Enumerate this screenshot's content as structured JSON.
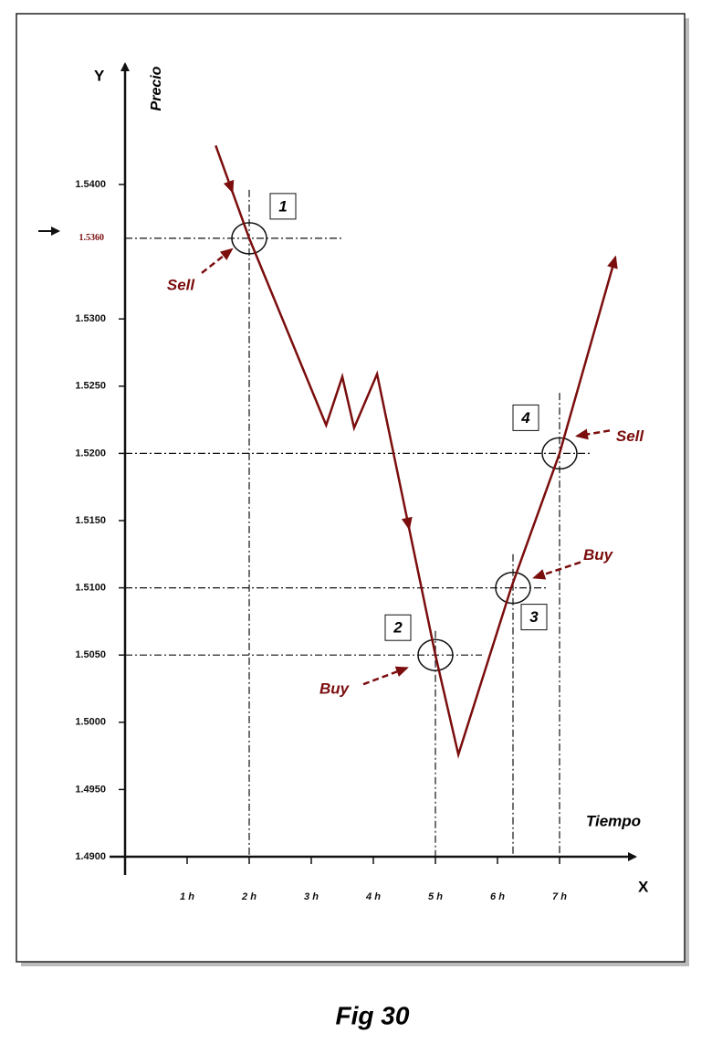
{
  "chart_data": {
    "type": "line",
    "title": "Fig 30",
    "y_label": "Precio",
    "x_label": "Tiempo",
    "y_axis_name": "Y",
    "x_axis_name": "X",
    "x": [
      1.46,
      2,
      3.24,
      3.5,
      3.69,
      4.06,
      5,
      5.37,
      6.22,
      7,
      7.9
    ],
    "values": [
      1.5429,
      1.536,
      1.5221,
      1.5257,
      1.5219,
      1.5259,
      1.505,
      1.4976,
      1.51,
      1.52,
      1.5346
    ],
    "color": "#7b0d0d",
    "xlim": [
      0,
      8.1
    ],
    "ylim": [
      1.49,
      1.548
    ],
    "xticks": [
      {
        "value": 1,
        "label": "1 h"
      },
      {
        "value": 2,
        "label": "2 h"
      },
      {
        "value": 3,
        "label": "3 h"
      },
      {
        "value": 4,
        "label": "4 h"
      },
      {
        "value": 5,
        "label": "5 h"
      },
      {
        "value": 6,
        "label": "6 h"
      },
      {
        "value": 7,
        "label": "7 h"
      }
    ],
    "yticks": [
      {
        "value": 1.49,
        "label": "1.4900"
      },
      {
        "value": 1.495,
        "label": "1.4950"
      },
      {
        "value": 1.5,
        "label": "1.5000"
      },
      {
        "value": 1.505,
        "label": "1.5050"
      },
      {
        "value": 1.51,
        "label": "1.5100"
      },
      {
        "value": 1.515,
        "label": "1.5150"
      },
      {
        "value": 1.52,
        "label": "1.5200"
      },
      {
        "value": 1.525,
        "label": "1.5250"
      },
      {
        "value": 1.53,
        "label": "1.5300"
      },
      {
        "value": 1.54,
        "label": "1.5400"
      }
    ],
    "marked_price": {
      "value": 1.536,
      "label": "1.5360"
    },
    "signals": [
      {
        "number": "1",
        "label": "Sell",
        "x": 2,
        "y": 1.536
      },
      {
        "number": "2",
        "label": "Buy",
        "x": 5,
        "y": 1.505
      },
      {
        "number": "3",
        "label": "Buy",
        "x": 6.25,
        "y": 1.51
      },
      {
        "number": "4",
        "label": "Sell",
        "x": 7,
        "y": 1.52
      }
    ]
  }
}
